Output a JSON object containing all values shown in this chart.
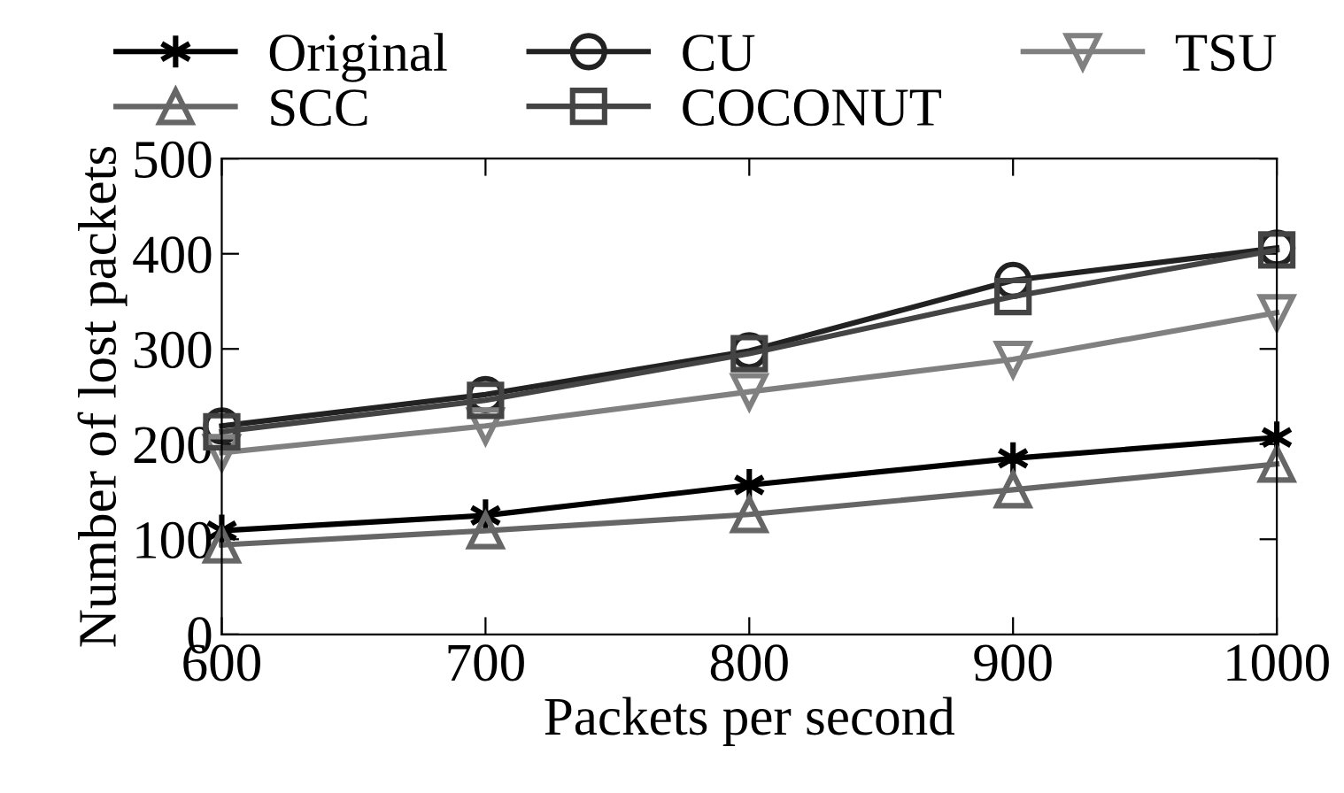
{
  "chart_data": {
    "type": "line",
    "xlabel": "Packets per second",
    "ylabel": "Number of lost packets",
    "x": [
      600,
      700,
      800,
      900,
      1000
    ],
    "series": [
      {
        "name": "Original",
        "color": "#000000",
        "marker": "cross",
        "values": [
          109,
          125,
          157,
          185,
          207
        ]
      },
      {
        "name": "CU",
        "color": "#222222",
        "marker": "circle",
        "values": [
          219,
          252,
          298,
          372,
          406
        ]
      },
      {
        "name": "TSU",
        "color": "#808080",
        "marker": "triangle_down",
        "values": [
          191,
          219,
          255,
          289,
          338
        ]
      },
      {
        "name": "SCC",
        "color": "#666666",
        "marker": "triangle",
        "values": [
          94,
          109,
          126,
          152,
          179
        ]
      },
      {
        "name": "COCONUT",
        "color": "#444444",
        "marker": "square",
        "values": [
          213,
          246,
          295,
          355,
          404
        ]
      }
    ],
    "xlim": [
      600,
      1000
    ],
    "xticks": [
      600,
      700,
      800,
      900,
      1000
    ],
    "ylim": [
      0,
      500
    ],
    "yticks": [
      0,
      100,
      200,
      300,
      400,
      500
    ],
    "grid": false,
    "legend": "top",
    "line_style": "solid"
  }
}
